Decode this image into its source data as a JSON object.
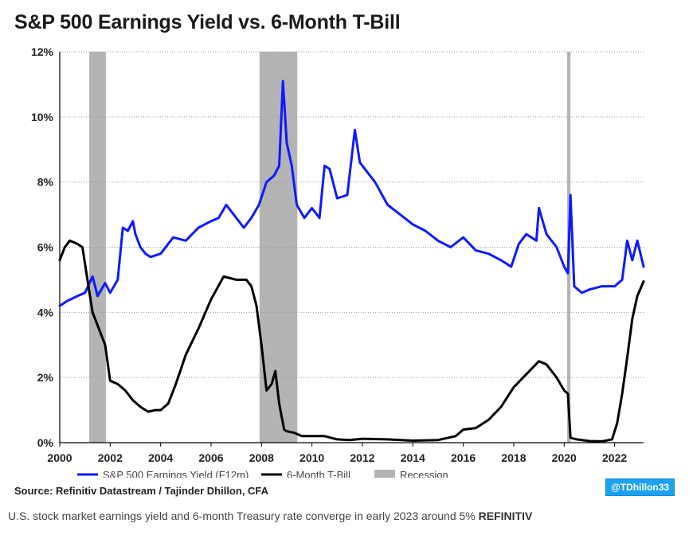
{
  "chart_data": {
    "type": "line",
    "title": "S&P 500 Earnings Yield vs. 6-Month T-Bill",
    "xlabel": "",
    "ylabel": "",
    "xlim": [
      2000.0,
      2023.15
    ],
    "ylim": [
      0,
      12
    ],
    "x_ticks": [
      2000,
      2002,
      2004,
      2006,
      2008,
      2010,
      2012,
      2014,
      2016,
      2018,
      2020,
      2022
    ],
    "y_ticks": [
      0,
      2,
      4,
      6,
      8,
      10,
      12
    ],
    "y_tick_labels": [
      "0%",
      "2%",
      "4%",
      "6%",
      "8%",
      "10%",
      "12%"
    ],
    "grid": "horizontal dotted",
    "legend": "bottom",
    "recessions": [
      {
        "name": "Recession",
        "start": 2001.17,
        "end": 2001.83
      },
      {
        "name": "Recession",
        "start": 2007.92,
        "end": 2009.42
      },
      {
        "name": "Recession",
        "start": 2020.12,
        "end": 2020.25
      }
    ],
    "series": [
      {
        "name": "S&P 500 Earnings Yield (F12m)",
        "color": "#0d1aff",
        "x": [
          2000.0,
          2000.3,
          2000.7,
          2001.0,
          2001.3,
          2001.5,
          2001.8,
          2002.0,
          2002.3,
          2002.5,
          2002.7,
          2002.9,
          2003.0,
          2003.2,
          2003.4,
          2003.6,
          2004.0,
          2004.5,
          2005.0,
          2005.5,
          2006.0,
          2006.3,
          2006.6,
          2007.0,
          2007.3,
          2007.6,
          2007.9,
          2008.2,
          2008.5,
          2008.7,
          2008.85,
          2009.0,
          2009.2,
          2009.4,
          2009.7,
          2010.0,
          2010.3,
          2010.5,
          2010.7,
          2011.0,
          2011.4,
          2011.7,
          2011.9,
          2012.2,
          2012.5,
          2013.0,
          2013.5,
          2014.0,
          2014.5,
          2015.0,
          2015.5,
          2016.0,
          2016.5,
          2017.0,
          2017.5,
          2017.9,
          2018.2,
          2018.5,
          2018.9,
          2019.0,
          2019.3,
          2019.7,
          2020.0,
          2020.15,
          2020.25,
          2020.4,
          2020.7,
          2021.0,
          2021.5,
          2022.0,
          2022.3,
          2022.5,
          2022.7,
          2022.9,
          2023.15
        ],
        "values": [
          4.2,
          4.35,
          4.5,
          4.6,
          5.1,
          4.5,
          4.9,
          4.6,
          5.0,
          6.6,
          6.5,
          6.8,
          6.4,
          6.0,
          5.8,
          5.7,
          5.8,
          6.3,
          6.2,
          6.6,
          6.8,
          6.9,
          7.3,
          6.9,
          6.6,
          6.9,
          7.3,
          8.0,
          8.2,
          8.5,
          11.1,
          9.2,
          8.5,
          7.3,
          6.9,
          7.2,
          6.9,
          8.5,
          8.4,
          7.5,
          7.6,
          9.6,
          8.6,
          8.3,
          8.0,
          7.3,
          7.0,
          6.7,
          6.5,
          6.2,
          6.0,
          6.3,
          5.9,
          5.8,
          5.6,
          5.4,
          6.1,
          6.4,
          6.2,
          7.2,
          6.4,
          6.0,
          5.4,
          5.2,
          7.6,
          4.8,
          4.6,
          4.7,
          4.8,
          4.8,
          5.0,
          6.2,
          5.6,
          6.2,
          5.4
        ]
      },
      {
        "name": "6-Month T-Bill",
        "color": "#000000",
        "x": [
          2000.0,
          2000.2,
          2000.4,
          2000.7,
          2000.9,
          2001.1,
          2001.3,
          2001.6,
          2001.8,
          2002.0,
          2002.3,
          2002.6,
          2002.9,
          2003.2,
          2003.5,
          2003.8,
          2004.0,
          2004.3,
          2004.6,
          2005.0,
          2005.5,
          2006.0,
          2006.5,
          2007.0,
          2007.4,
          2007.6,
          2007.8,
          2008.0,
          2008.2,
          2008.4,
          2008.55,
          2008.7,
          2008.8,
          2008.9,
          2009.0,
          2009.3,
          2009.6,
          2010.0,
          2010.5,
          2011.0,
          2011.5,
          2012.0,
          2013.0,
          2014.0,
          2015.0,
          2015.7,
          2016.0,
          2016.5,
          2017.0,
          2017.5,
          2018.0,
          2018.5,
          2019.0,
          2019.3,
          2019.7,
          2020.0,
          2020.15,
          2020.25,
          2020.5,
          2021.0,
          2021.5,
          2021.9,
          2022.1,
          2022.3,
          2022.5,
          2022.7,
          2022.9,
          2023.15
        ],
        "values": [
          5.6,
          6.0,
          6.2,
          6.1,
          6.0,
          5.0,
          4.0,
          3.4,
          3.0,
          1.9,
          1.8,
          1.6,
          1.3,
          1.1,
          0.95,
          1.0,
          1.0,
          1.2,
          1.8,
          2.7,
          3.5,
          4.4,
          5.1,
          5.0,
          5.0,
          4.8,
          4.2,
          3.0,
          1.6,
          1.8,
          2.2,
          1.2,
          0.8,
          0.4,
          0.35,
          0.3,
          0.2,
          0.2,
          0.2,
          0.1,
          0.08,
          0.12,
          0.1,
          0.06,
          0.08,
          0.2,
          0.4,
          0.45,
          0.7,
          1.1,
          1.7,
          2.1,
          2.5,
          2.4,
          2.0,
          1.6,
          1.5,
          0.15,
          0.1,
          0.05,
          0.04,
          0.1,
          0.6,
          1.5,
          2.6,
          3.8,
          4.5,
          4.95
        ]
      },
      {
        "name": "Recession",
        "color": "#b4b4b4"
      }
    ]
  },
  "source": "Source: Refinitiv Datastream / Tajinder Dhillon, CFA",
  "handle": "@TDhillon33",
  "caption": {
    "text": "U.S. stock market earnings yield and 6-month Treasury rate converge in early 2023 around 5%",
    "brand": "REFINITIV"
  }
}
